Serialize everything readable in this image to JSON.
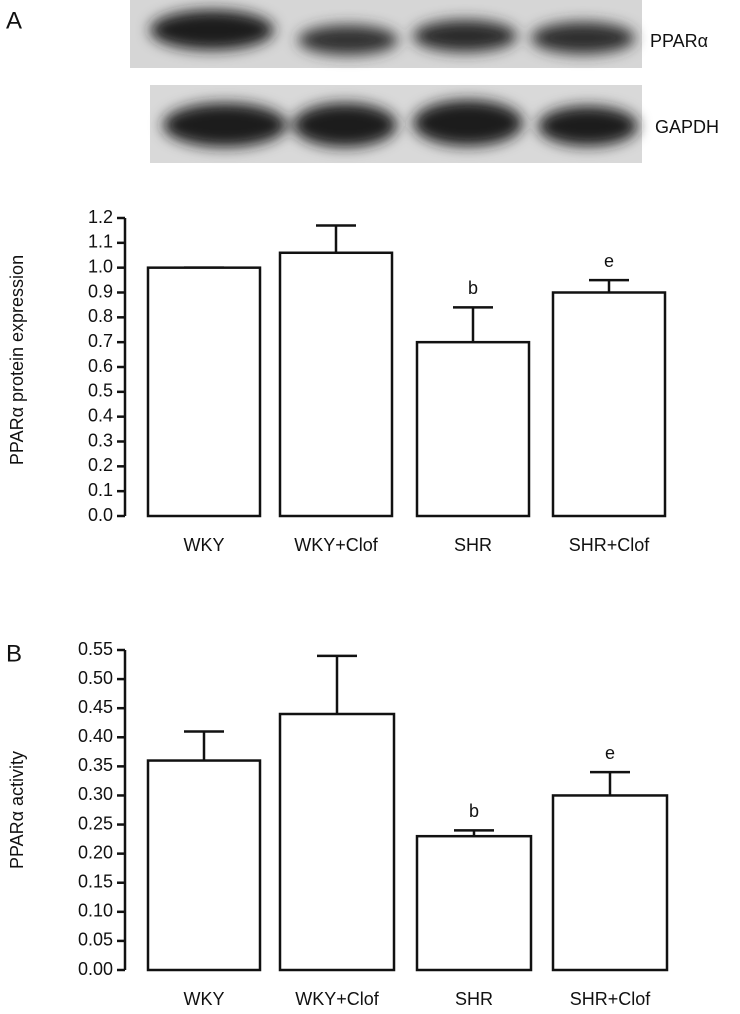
{
  "chart_data": [
    {
      "type": "bar",
      "panel_label": "A",
      "blot": {
        "labels": [
          "PPARα",
          "GAPDH"
        ]
      },
      "y_label": "PPARα protein expression",
      "categories": [
        "WKY",
        "WKY+Clof",
        "SHR",
        "SHR+Clof"
      ],
      "values": [
        1.0,
        1.06,
        0.7,
        0.9
      ],
      "errors": [
        0.0,
        0.11,
        0.14,
        0.05
      ],
      "value_annotations": [
        null,
        null,
        "b",
        "e"
      ],
      "color": "#ffffff",
      "ylim": [
        0,
        1.2
      ],
      "yticks": [
        {
          "value": 0,
          "label": "0.0"
        },
        0.1,
        0.2,
        0.3,
        0.4,
        0.5,
        0.6,
        0.7,
        0.8,
        0.9,
        {
          "value": 1,
          "label": "1.0"
        },
        1.1,
        1.2
      ]
    },
    {
      "type": "bar",
      "panel_label": "B",
      "y_label": "PPARα activity",
      "categories": [
        "WKY",
        "WKY+Clof",
        "SHR",
        "SHR+Clof"
      ],
      "values": [
        0.36,
        0.44,
        0.23,
        0.3
      ],
      "errors": [
        0.05,
        0.1,
        0.01,
        0.04
      ],
      "value_annotations": [
        null,
        null,
        "b",
        "e"
      ],
      "color": "#ffffff",
      "ylim": [
        0,
        0.55
      ],
      "yticks": [
        {
          "value": 0,
          "label": "0.00"
        },
        0.05,
        {
          "value": 0.1,
          "label": "0.10"
        },
        0.15,
        {
          "value": 0.2,
          "label": "0.20"
        },
        0.25,
        {
          "value": 0.3,
          "label": "0.30"
        },
        0.35,
        {
          "value": 0.4,
          "label": "0.40"
        },
        0.45,
        {
          "value": 0.5,
          "label": "0.50"
        },
        0.55
      ]
    }
  ]
}
